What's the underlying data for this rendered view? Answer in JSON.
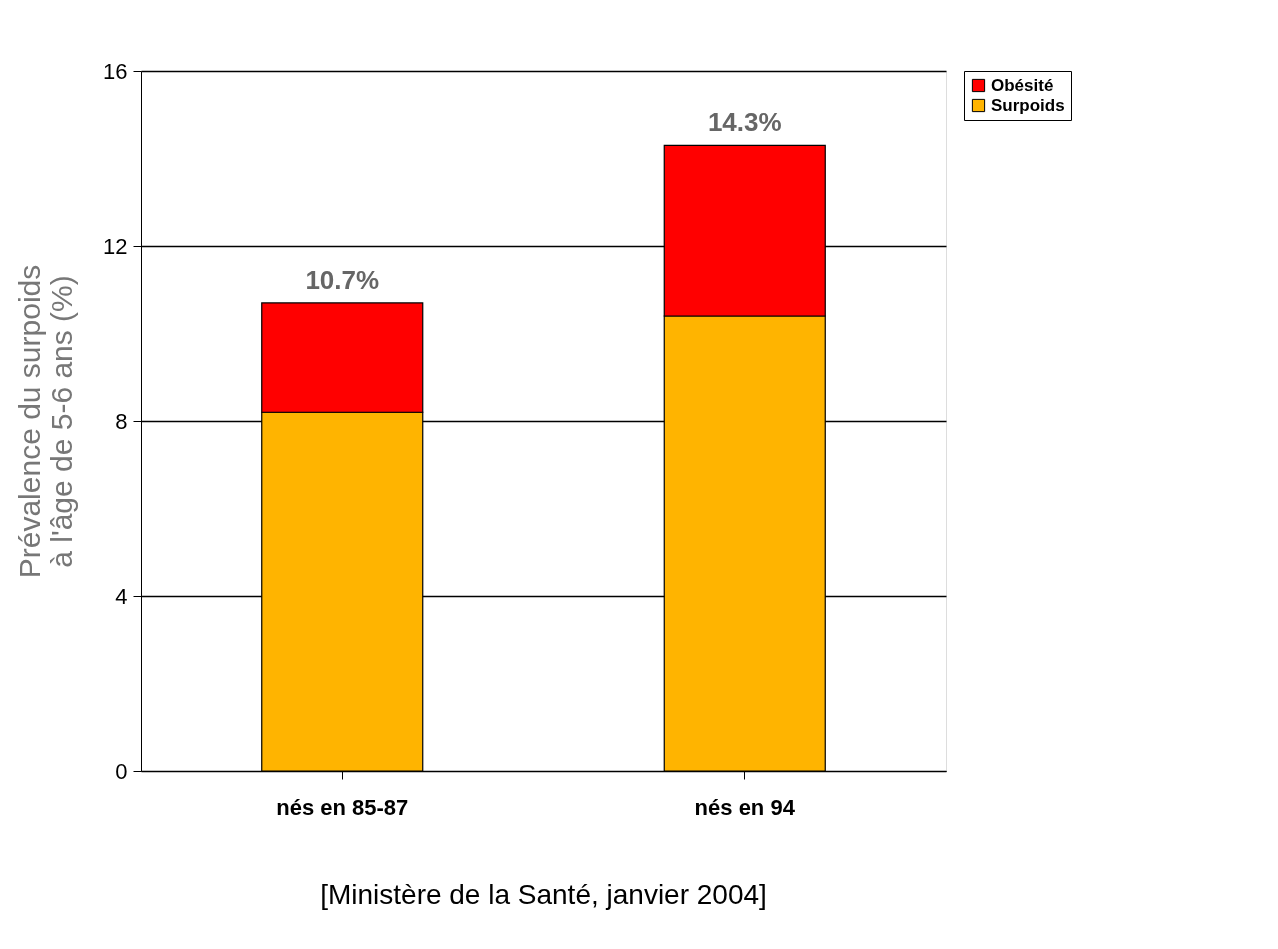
{
  "chart_data": {
    "type": "bar",
    "stacked": true,
    "ylabel": "Prévalence du surpoids\nà l'âge de 5-6 ans (%)",
    "categories": [
      "nés en 85-87",
      "nés en 94"
    ],
    "series": [
      {
        "name": "Surpoids",
        "color": "#ffb400",
        "values": [
          8.2,
          10.4
        ]
      },
      {
        "name": "Obésité",
        "color": "#ff0000",
        "values": [
          2.5,
          3.9
        ]
      }
    ],
    "totals": [
      "10.7%",
      "14.3%"
    ],
    "ylim": [
      0,
      16
    ],
    "yticks": [
      0,
      4,
      8,
      12,
      16
    ],
    "grid": "y",
    "legend": "right",
    "annotations": [
      "[Ministère de la Santé, janvier 2004]"
    ]
  }
}
